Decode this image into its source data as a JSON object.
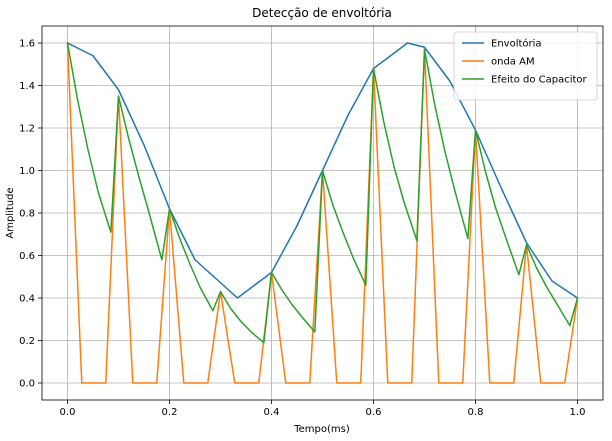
{
  "chart_data": {
    "type": "line",
    "title": "Detecção de envoltória",
    "xlabel": "Tempo(ms)",
    "ylabel": "Amplitude",
    "xlim": [
      -0.05,
      1.05
    ],
    "ylim": [
      -0.08,
      1.68
    ],
    "xticks": [
      0.0,
      0.2,
      0.4,
      0.6,
      0.8,
      1.0
    ],
    "xtick_labels": [
      "0.0",
      "0.2",
      "0.4",
      "0.6",
      "0.8",
      "1.0"
    ],
    "yticks": [
      0.0,
      0.2,
      0.4,
      0.6,
      0.8,
      1.0,
      1.2,
      1.4,
      1.6
    ],
    "ytick_labels": [
      "0.0",
      "0.2",
      "0.4",
      "0.6",
      "0.8",
      "1.0",
      "1.2",
      "1.4",
      "1.6"
    ],
    "grid": true,
    "legend_position": "top-right",
    "series": [
      {
        "name": "Envoltória",
        "color": "#1f77b4",
        "x": [
          0.0,
          0.05,
          0.1,
          0.15,
          0.2,
          0.25,
          0.3333,
          0.4,
          0.45,
          0.5,
          0.55,
          0.6,
          0.6667,
          0.7,
          0.75,
          0.8,
          0.85,
          0.9,
          0.95,
          1.0
        ],
        "y": [
          1.6,
          1.54,
          1.38,
          1.12,
          0.82,
          0.58,
          0.4,
          0.52,
          0.74,
          1.0,
          1.26,
          1.48,
          1.6,
          1.58,
          1.42,
          1.19,
          0.92,
          0.66,
          0.48,
          0.4
        ]
      },
      {
        "name": "onda AM",
        "color": "#ff7f0e",
        "x": [
          0.0,
          0.028,
          0.075,
          0.1,
          0.128,
          0.175,
          0.2,
          0.228,
          0.275,
          0.3,
          0.328,
          0.375,
          0.4,
          0.428,
          0.475,
          0.5,
          0.528,
          0.575,
          0.6,
          0.628,
          0.675,
          0.7,
          0.728,
          0.775,
          0.8,
          0.828,
          0.875,
          0.9,
          0.928,
          0.975,
          1.0
        ],
        "y": [
          1.6,
          0.0,
          0.0,
          1.35,
          0.0,
          0.0,
          0.82,
          0.0,
          0.0,
          0.43,
          0.0,
          0.0,
          0.52,
          0.0,
          0.0,
          1.0,
          0.0,
          0.0,
          1.48,
          0.0,
          0.0,
          1.57,
          0.0,
          0.0,
          1.19,
          0.0,
          0.0,
          0.65,
          0.0,
          0.0,
          0.4
        ]
      },
      {
        "name": "Efeito do Capacitor",
        "color": "#2ca02c",
        "x": [
          0.0,
          0.02,
          0.04,
          0.06,
          0.085,
          0.1,
          0.12,
          0.14,
          0.16,
          0.185,
          0.2,
          0.22,
          0.24,
          0.26,
          0.285,
          0.3,
          0.32,
          0.34,
          0.36,
          0.385,
          0.4,
          0.42,
          0.44,
          0.46,
          0.485,
          0.5,
          0.52,
          0.54,
          0.56,
          0.585,
          0.6,
          0.62,
          0.64,
          0.66,
          0.685,
          0.7,
          0.72,
          0.74,
          0.76,
          0.785,
          0.8,
          0.82,
          0.84,
          0.86,
          0.885,
          0.9,
          0.92,
          0.94,
          0.96,
          0.985,
          1.0
        ],
        "y": [
          1.6,
          1.33,
          1.1,
          0.9,
          0.71,
          1.35,
          1.15,
          0.97,
          0.8,
          0.58,
          0.82,
          0.68,
          0.56,
          0.45,
          0.34,
          0.43,
          0.35,
          0.29,
          0.24,
          0.19,
          0.52,
          0.44,
          0.37,
          0.31,
          0.24,
          1.0,
          0.84,
          0.71,
          0.59,
          0.46,
          1.48,
          1.23,
          1.02,
          0.85,
          0.67,
          1.57,
          1.31,
          1.09,
          0.9,
          0.68,
          1.19,
          0.99,
          0.82,
          0.68,
          0.51,
          0.65,
          0.54,
          0.45,
          0.37,
          0.27,
          0.4
        ]
      }
    ]
  }
}
